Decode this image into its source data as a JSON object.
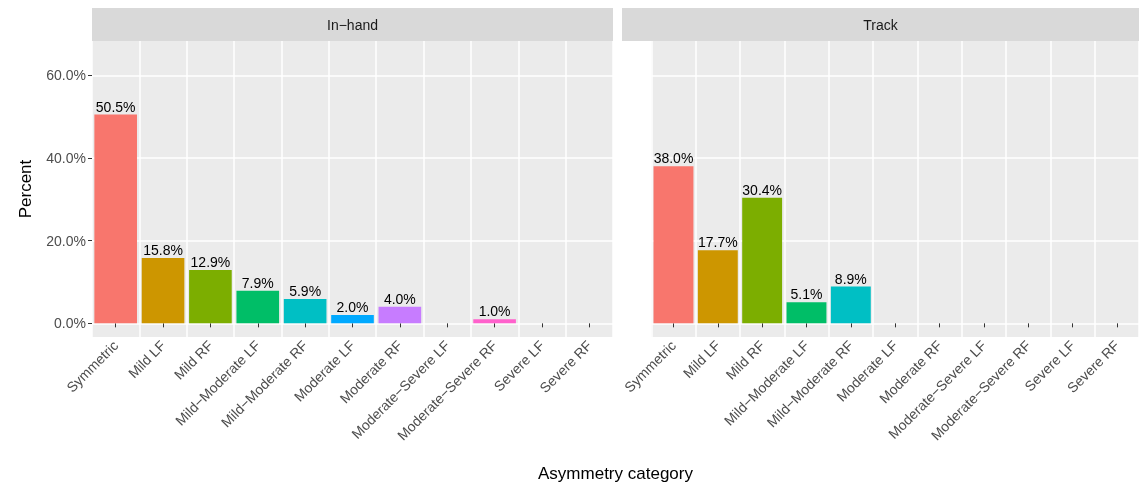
{
  "chart_data": [
    {
      "type": "bar",
      "title": "In−hand",
      "xlabel": "Asymmetry category",
      "ylabel": "Percent",
      "categories": [
        "Symmetric",
        "Mild LF",
        "Mild RF",
        "Mild−Moderate LF",
        "Mild−Moderate RF",
        "Moderate LF",
        "Moderate RF",
        "Moderate−Severe LF",
        "Moderate−Severe RF",
        "Severe LF",
        "Severe RF"
      ],
      "values": [
        50.5,
        15.8,
        12.9,
        7.9,
        5.9,
        2.0,
        4.0,
        null,
        1.0,
        null,
        null
      ],
      "value_labels": [
        "50.5%",
        "15.8%",
        "12.9%",
        "7.9%",
        "5.9%",
        "2.0%",
        "4.0%",
        null,
        "1.0%",
        null,
        null
      ],
      "colors": [
        "#f8766d",
        "#cd9600",
        "#7cae00",
        "#00be67",
        "#00bfc4",
        "#00a9ff",
        "#c77cff",
        "#c77cff",
        "#ff61cc",
        "#ff61cc",
        "#ff61cc"
      ],
      "ylim": [
        -3.3,
        68.3
      ],
      "yticks": [
        {
          "value": 0,
          "label": "0.0%"
        },
        {
          "value": 20,
          "label": "20.0%"
        },
        {
          "value": 40,
          "label": "40.0%"
        },
        {
          "value": 60,
          "label": "60.0%"
        }
      ],
      "grid": true
    },
    {
      "type": "bar",
      "title": "Track",
      "categories": [
        "Symmetric",
        "Mild LF",
        "Mild RF",
        "Mild−Moderate LF",
        "Mild−Moderate RF",
        "Moderate LF",
        "Moderate RF",
        "Moderate−Severe LF",
        "Moderate−Severe RF",
        "Severe LF",
        "Severe RF"
      ],
      "values": [
        38.0,
        17.7,
        30.4,
        5.1,
        8.9,
        null,
        null,
        null,
        null,
        null,
        null
      ],
      "value_labels": [
        "38.0%",
        "17.7%",
        "30.4%",
        "5.1%",
        "8.9%",
        null,
        null,
        null,
        null,
        null,
        null
      ],
      "colors": [
        "#f8766d",
        "#cd9600",
        "#7cae00",
        "#00be67",
        "#00bfc4",
        "#00a9ff",
        "#c77cff",
        "#c77cff",
        "#ff61cc",
        "#ff61cc",
        "#ff61cc"
      ],
      "ylim": [
        -3.3,
        68.3
      ],
      "yticks": [
        0,
        20,
        40,
        60
      ],
      "tick_labels": "x",
      "grid": true
    }
  ]
}
